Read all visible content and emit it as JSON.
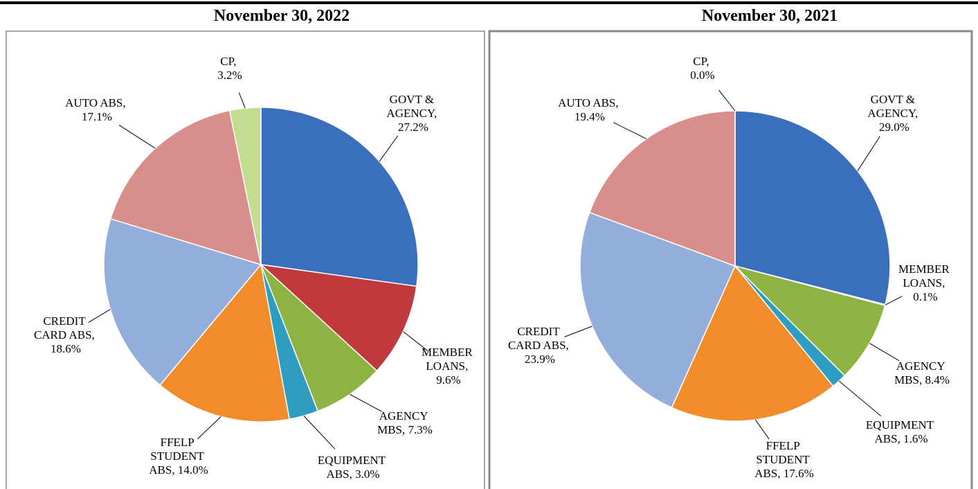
{
  "chart_data": [
    {
      "type": "pie",
      "title": "November 30, 2022",
      "labels": [
        "GOVT & AGENCY, 27.2%",
        "MEMBER LOANS, 9.6%",
        "AGENCY MBS, 7.3%",
        "EQUIPMENT ABS, 3.0%",
        "FFELP STUDENT ABS, 14.0%",
        "CREDIT CARD ABS, 18.6%",
        "AUTO ABS, 17.1%",
        "CP, 3.2%"
      ],
      "values": [
        27.2,
        9.6,
        7.3,
        3.0,
        14.0,
        18.6,
        17.1,
        3.2
      ],
      "colors": [
        "#3a6fbe",
        "#c0393b",
        "#8db443",
        "#2f9dbf",
        "#f08c2a",
        "#93aedb",
        "#d88f8c",
        "#c4dc92"
      ]
    },
    {
      "type": "pie",
      "title": "November 30, 2021",
      "labels": [
        "GOVT & AGENCY, 29.0%",
        "MEMBER LOANS, 0.1%",
        "AGENCY MBS, 8.4%",
        "EQUIPMENT ABS, 1.6%",
        "FFELP STUDENT ABS, 17.6%",
        "CREDIT CARD ABS, 23.9%",
        "AUTO ABS, 19.4%",
        "CP, 0.0%"
      ],
      "values": [
        29.0,
        0.1,
        8.4,
        1.6,
        17.6,
        23.9,
        19.4,
        0.0
      ],
      "colors": [
        "#3a6fbe",
        "#c0393b",
        "#8db443",
        "#2f9dbf",
        "#f08c2a",
        "#93aedb",
        "#d88f8c",
        "#c4dc92"
      ]
    }
  ]
}
